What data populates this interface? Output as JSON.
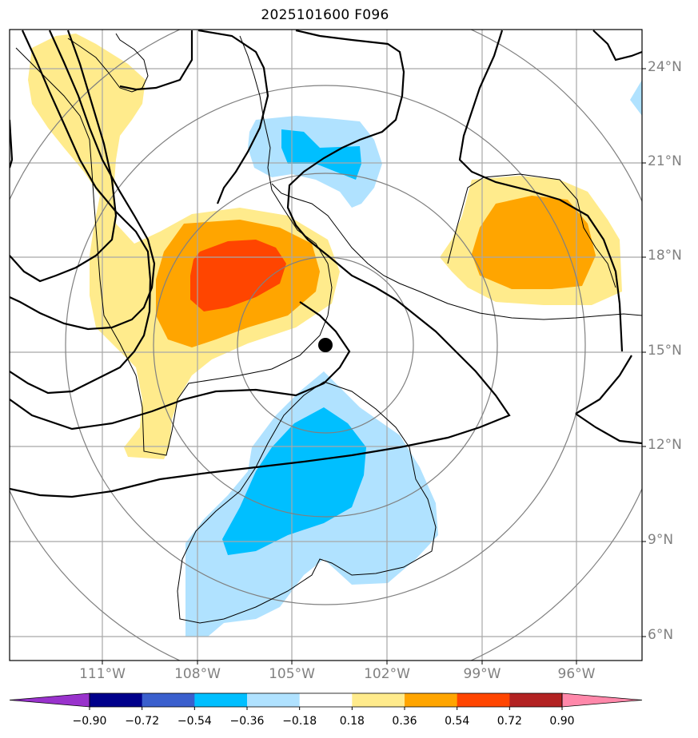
{
  "title": "2025101600 F096",
  "latitude_labels": [
    "24°N",
    "21°N",
    "18°N",
    "15°N",
    "12°N",
    "9°N",
    "6°N"
  ],
  "longitude_labels": [
    "111°W",
    "108°W",
    "105°W",
    "102°W",
    "99°W",
    "96°W"
  ],
  "storm_center": {
    "lat": 15.2,
    "lon": -103.9
  },
  "colorbar": {
    "labels": [
      "−0.90",
      "−0.72",
      "−0.54",
      "−0.36",
      "−0.18",
      "0.18",
      "0.36",
      "0.54",
      "0.72",
      "0.90"
    ],
    "colors": [
      "#9932cc",
      "#00008b",
      "#3a5fcd",
      "#00bfff",
      "#b0e2ff",
      "#ffffff",
      "#ffeb8c",
      "#ffa500",
      "#ff4500",
      "#b22222",
      "#ff88aa"
    ]
  },
  "colors": {
    "neg_strong": "#00bfff",
    "neg_weak": "#b0e2ff",
    "pos_weak": "#ffeb8c",
    "pos_mid": "#ffa500",
    "pos_strong": "#ff4500",
    "grid": "#a0a0a0",
    "range_rings": "#808080",
    "contours": "#000000"
  }
}
